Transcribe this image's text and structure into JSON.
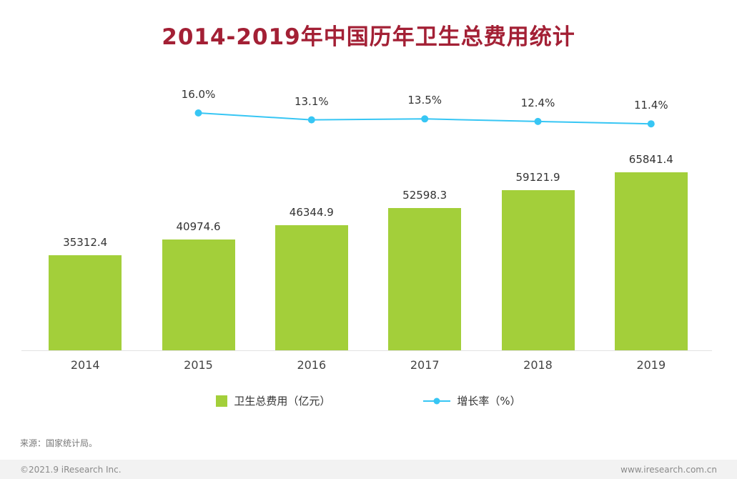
{
  "title": "2014-2019年中国历年卫生总费用统计",
  "chart_data": {
    "type": "bar",
    "combo": "bar+line",
    "title": "2014-2019年中国历年卫生总费用统计",
    "categories": [
      "2014",
      "2015",
      "2016",
      "2017",
      "2018",
      "2019"
    ],
    "series": [
      {
        "name": "卫生总费用（亿元）",
        "type": "bar",
        "color": "#a3cf3a",
        "values": [
          35312.4,
          40974.6,
          46344.9,
          52598.3,
          59121.9,
          65841.4
        ]
      },
      {
        "name": "增长率（%）",
        "type": "line",
        "color": "#37c6f4",
        "x": [
          "2015",
          "2016",
          "2017",
          "2018",
          "2019"
        ],
        "values": [
          16.0,
          13.1,
          13.5,
          12.4,
          11.4
        ]
      }
    ],
    "value_labels": [
      "35312.4",
      "40974.6",
      "46344.9",
      "52598.3",
      "59121.9",
      "65841.4"
    ],
    "line_labels": [
      "16.0%",
      "13.1%",
      "13.5%",
      "12.4%",
      "11.4%"
    ],
    "xlabel": "",
    "ylabel": "",
    "grid": false,
    "legend_position": "bottom"
  },
  "legend": {
    "bar_label": "卫生总费用（亿元）",
    "line_label": "增长率（%）"
  },
  "source": "来源：国家统计局。",
  "footer": {
    "left": "©2021.9 iResearch Inc.",
    "right": "www.iresearch.com.cn"
  },
  "colors": {
    "title": "#a32035",
    "bar": "#a3cf3a",
    "line": "#37c6f4",
    "footer_bg": "#f2f2f2"
  }
}
